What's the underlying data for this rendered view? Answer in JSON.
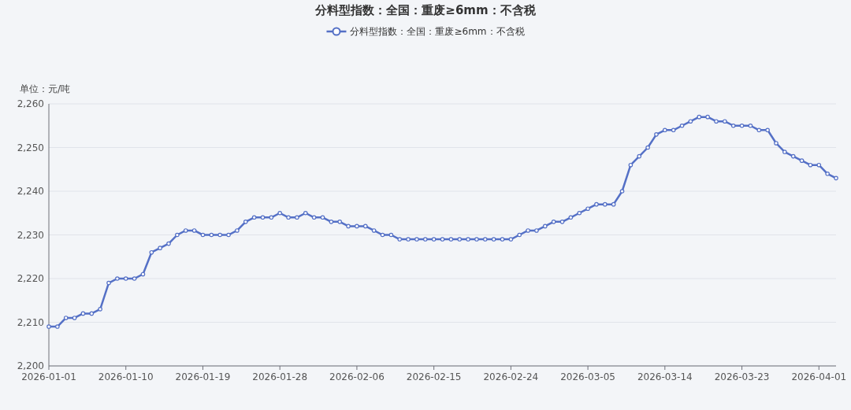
{
  "chart_data": {
    "type": "line",
    "title": "分料型指数：全国：重废≥6mm：不含税",
    "ylabel": "单位：元/吨",
    "x": [
      "2026-01-01",
      "2026-01-02",
      "2026-01-03",
      "2026-01-04",
      "2026-01-05",
      "2026-01-06",
      "2026-01-07",
      "2026-01-08",
      "2026-01-09",
      "2026-01-10",
      "2026-01-11",
      "2026-01-12",
      "2026-01-13",
      "2026-01-14",
      "2026-01-15",
      "2026-01-16",
      "2026-01-17",
      "2026-01-18",
      "2026-01-19",
      "2026-01-20",
      "2026-01-21",
      "2026-01-22",
      "2026-01-23",
      "2026-01-24",
      "2026-01-25",
      "2026-01-26",
      "2026-01-27",
      "2026-01-28",
      "2026-01-29",
      "2026-01-30",
      "2026-01-31",
      "2026-02-01",
      "2026-02-02",
      "2026-02-03",
      "2026-02-04",
      "2026-02-05",
      "2026-02-06",
      "2026-02-07",
      "2026-02-08",
      "2026-02-09",
      "2026-02-10",
      "2026-02-11",
      "2026-02-12",
      "2026-02-13",
      "2026-02-14",
      "2026-02-15",
      "2026-02-16",
      "2026-02-17",
      "2026-02-18",
      "2026-02-19",
      "2026-02-20",
      "2026-02-21",
      "2026-02-22",
      "2026-02-23",
      "2026-02-24",
      "2026-02-25",
      "2026-02-26",
      "2026-02-27",
      "2026-02-28",
      "2026-03-01",
      "2026-03-02",
      "2026-03-03",
      "2026-03-04",
      "2026-03-05",
      "2026-03-06",
      "2026-03-07",
      "2026-03-08",
      "2026-03-09",
      "2026-03-10",
      "2026-03-11",
      "2026-03-12",
      "2026-03-13",
      "2026-03-14",
      "2026-03-15",
      "2026-03-16",
      "2026-03-17",
      "2026-03-18",
      "2026-03-19",
      "2026-03-20",
      "2026-03-21",
      "2026-03-22",
      "2026-03-23",
      "2026-03-24",
      "2026-03-25",
      "2026-03-26",
      "2026-03-27",
      "2026-03-28",
      "2026-03-29",
      "2026-03-30",
      "2026-03-31",
      "2026-04-01",
      "2026-04-02",
      "2026-04-03"
    ],
    "series": [
      {
        "name": "分料型指数：全国：重废≥6mm：不含税",
        "color": "#5470c6",
        "values": [
          2209,
          2209,
          2211,
          2211,
          2212,
          2212,
          2213,
          2219,
          2220,
          2220,
          2220,
          2221,
          2226,
          2227,
          2228,
          2230,
          2231,
          2231,
          2230,
          2230,
          2230,
          2230,
          2231,
          2233,
          2234,
          2234,
          2234,
          2235,
          2234,
          2234,
          2235,
          2234,
          2234,
          2233,
          2233,
          2232,
          2232,
          2232,
          2231,
          2230,
          2230,
          2229,
          2229,
          2229,
          2229,
          2229,
          2229,
          2229,
          2229,
          2229,
          2229,
          2229,
          2229,
          2229,
          2229,
          2230,
          2231,
          2231,
          2232,
          2233,
          2233,
          2234,
          2235,
          2236,
          2237,
          2237,
          2237,
          2240,
          2246,
          2248,
          2250,
          2253,
          2254,
          2254,
          2255,
          2256,
          2257,
          2257,
          2256,
          2256,
          2255,
          2255,
          2255,
          2254,
          2254,
          2251,
          2249,
          2248,
          2247,
          2246,
          2246,
          2244,
          2243
        ]
      }
    ],
    "xlim": [
      "2026-01-01",
      "2026-04-03"
    ],
    "xticks": [
      "2026-01-01",
      "2026-01-10",
      "2026-01-19",
      "2026-01-28",
      "2026-02-06",
      "2026-02-15",
      "2026-02-24",
      "2026-03-05",
      "2026-03-14",
      "2026-03-23",
      "2026-04-01"
    ],
    "ylim": [
      2200,
      2260
    ],
    "yticks": [
      {
        "value": 2200,
        "label": "2,200"
      },
      {
        "value": 2210,
        "label": "2,210"
      },
      {
        "value": 2220,
        "label": "2,220"
      },
      {
        "value": 2230,
        "label": "2,230"
      },
      {
        "value": 2240,
        "label": "2,240"
      },
      {
        "value": 2250,
        "label": "2,250"
      },
      {
        "value": 2260,
        "label": "2,260"
      }
    ],
    "grid": "y",
    "legend": "top",
    "marker": "circle",
    "line_style": "solid"
  }
}
